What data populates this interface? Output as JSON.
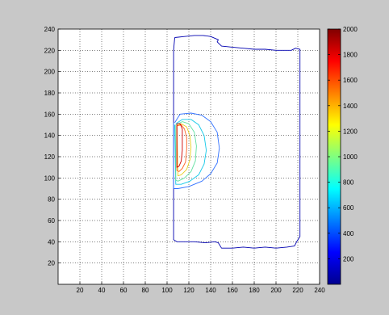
{
  "colors": {
    "figure_bg": "#c8c8c8",
    "axes_bg": "#ffffff",
    "grid": "#000000",
    "outer_contour": "#0000b0"
  },
  "chart_data": {
    "type": "contour",
    "title": "",
    "xlabel": "",
    "ylabel": "",
    "xlim": [
      0,
      240
    ],
    "ylim": [
      0,
      240
    ],
    "x_ticks": [
      20,
      40,
      60,
      80,
      100,
      120,
      140,
      160,
      180,
      200,
      220,
      240
    ],
    "y_ticks": [
      20,
      40,
      60,
      80,
      100,
      120,
      140,
      160,
      180,
      200,
      220,
      240
    ],
    "grid": true,
    "colorbar": {
      "range": [
        0,
        2000
      ],
      "ticks": [
        200,
        400,
        600,
        800,
        1000,
        1200,
        1400,
        1600,
        1800,
        2000
      ],
      "colormap": "jet",
      "placement": "right"
    },
    "contours": [
      {
        "level": 100,
        "color": "#0000b0",
        "points": [
          [
            107,
            232
          ],
          [
            116,
            233
          ],
          [
            125,
            234
          ],
          [
            133,
            234
          ],
          [
            140,
            233
          ],
          [
            147,
            230
          ],
          [
            146,
            228
          ],
          [
            150,
            224
          ],
          [
            160,
            223
          ],
          [
            170,
            222
          ],
          [
            180,
            221
          ],
          [
            190,
            221
          ],
          [
            200,
            220
          ],
          [
            210,
            220
          ],
          [
            214,
            220
          ],
          [
            218,
            222
          ],
          [
            222,
            221
          ],
          [
            222,
            200
          ],
          [
            222,
            180
          ],
          [
            222,
            160
          ],
          [
            222,
            140
          ],
          [
            222,
            120
          ],
          [
            222,
            100
          ],
          [
            222,
            80
          ],
          [
            222,
            60
          ],
          [
            222,
            45
          ],
          [
            219,
            40
          ],
          [
            217,
            36
          ],
          [
            210,
            35
          ],
          [
            200,
            34
          ],
          [
            190,
            35
          ],
          [
            180,
            34
          ],
          [
            170,
            35
          ],
          [
            160,
            34
          ],
          [
            150,
            34
          ],
          [
            147,
            39
          ],
          [
            144,
            40
          ],
          [
            135,
            39
          ],
          [
            125,
            40
          ],
          [
            115,
            40
          ],
          [
            109,
            40
          ],
          [
            106,
            42
          ],
          [
            106,
            60
          ],
          [
            106,
            80
          ],
          [
            106,
            100
          ],
          [
            106,
            140
          ],
          [
            106,
            170
          ],
          [
            106,
            200
          ],
          [
            106,
            220
          ],
          [
            107,
            232
          ]
        ]
      },
      {
        "level": 300,
        "color": "#3070ff",
        "points": [
          [
            107,
            152
          ],
          [
            112,
            160
          ],
          [
            122,
            161
          ],
          [
            132,
            159
          ],
          [
            140,
            153
          ],
          [
            146,
            143
          ],
          [
            148,
            128
          ],
          [
            146,
            114
          ],
          [
            140,
            104
          ],
          [
            132,
            97
          ],
          [
            120,
            92
          ],
          [
            110,
            90
          ],
          [
            106,
            90
          ],
          [
            106,
            152
          ]
        ]
      },
      {
        "level": 600,
        "color": "#10c8e8",
        "points": [
          [
            108,
            151
          ],
          [
            114,
            155
          ],
          [
            122,
            155
          ],
          [
            129,
            150
          ],
          [
            134,
            140
          ],
          [
            136,
            126
          ],
          [
            134,
            113
          ],
          [
            129,
            103
          ],
          [
            121,
            97
          ],
          [
            113,
            94
          ],
          [
            108,
            94
          ],
          [
            107,
            150
          ]
        ]
      },
      {
        "level": 900,
        "color": "#60e0a0",
        "points": [
          [
            108,
            150
          ],
          [
            114,
            153
          ],
          [
            120,
            151
          ],
          [
            125,
            143
          ],
          [
            127,
            130
          ],
          [
            126,
            116
          ],
          [
            122,
            106
          ],
          [
            116,
            100
          ],
          [
            110,
            97
          ],
          [
            108,
            98
          ],
          [
            108,
            150
          ]
        ]
      },
      {
        "level": 1200,
        "color": "#e8d020",
        "points": [
          [
            109,
            149
          ],
          [
            113,
            151
          ],
          [
            118,
            148
          ],
          [
            121,
            140
          ],
          [
            122,
            129
          ],
          [
            121,
            117
          ],
          [
            118,
            108
          ],
          [
            113,
            103
          ],
          [
            110,
            102
          ],
          [
            109,
            149
          ]
        ]
      },
      {
        "level": 1500,
        "color": "#ff6020",
        "points": [
          [
            109,
            149
          ],
          [
            113,
            150
          ],
          [
            116,
            146
          ],
          [
            118,
            138
          ],
          [
            118,
            127
          ],
          [
            117,
            115
          ],
          [
            114,
            109
          ],
          [
            111,
            106
          ],
          [
            109,
            107
          ],
          [
            109,
            149
          ]
        ]
      },
      {
        "level": 1800,
        "color": "#d00000",
        "points": [
          [
            109,
            151
          ],
          [
            112,
            151
          ],
          [
            114,
            146
          ],
          [
            114,
            137
          ],
          [
            114,
            126
          ],
          [
            113,
            116
          ],
          [
            111,
            111
          ],
          [
            109,
            110
          ],
          [
            109,
            151
          ]
        ]
      }
    ]
  }
}
